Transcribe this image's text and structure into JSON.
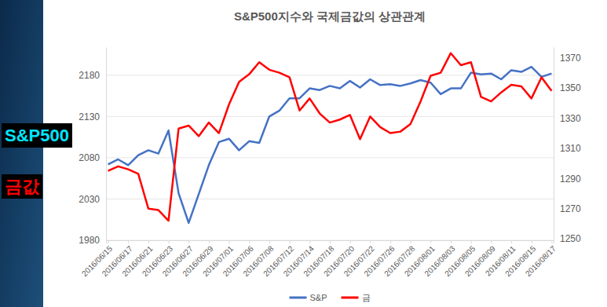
{
  "chart_data": {
    "type": "line",
    "title": "S&P500지수와 국제금값의 상관관계",
    "categories": [
      "2016/06/15",
      null,
      "2016/06/17",
      null,
      "2016/06/21",
      null,
      "2016/06/23",
      null,
      "2016/06/27",
      null,
      "2016/06/29",
      null,
      "2016/07/01",
      null,
      "2016/07/06",
      null,
      "2016/07/08",
      null,
      "2016/07/12",
      null,
      "2016/07/14",
      null,
      "2016/07/18",
      null,
      "2016/07/20",
      null,
      "2016/07/22",
      null,
      "2016/07/26",
      null,
      "2016/07/28",
      null,
      "2016/08/01",
      null,
      "2016/08/03",
      null,
      "2016/08/05",
      null,
      "2016/08/09",
      null,
      "2016/08/11",
      null,
      "2016/08/15",
      null,
      "2016/08/17"
    ],
    "series": [
      {
        "name": "S&P",
        "color": "#4472c4",
        "values": [
          2072,
          2078,
          2071,
          2083,
          2089,
          2085,
          2113,
          2037,
          2001,
          2036,
          2071,
          2099,
          2103,
          2089,
          2100,
          2098,
          2130,
          2137,
          2152,
          2152,
          2164,
          2162,
          2167,
          2164,
          2173,
          2165,
          2175,
          2168,
          2169,
          2167,
          2170,
          2174,
          2171,
          2157,
          2164,
          2164,
          2183,
          2181,
          2182,
          2175,
          2186,
          2184,
          2190,
          2178,
          2182
        ]
      },
      {
        "name": "금",
        "color": "#ff0000",
        "axis": "y2",
        "values": [
          1295,
          1298,
          1296,
          1293,
          1270,
          1269,
          1262,
          1323,
          1325,
          1318,
          1327,
          1320,
          1339,
          1354,
          1359,
          1367,
          1362,
          1360,
          1357,
          1335,
          1343,
          1333,
          1327,
          1329,
          1332,
          1316,
          1331,
          1324,
          1320,
          1321,
          1326,
          1341,
          1358,
          1360,
          1373,
          1365,
          1367,
          1344,
          1341,
          1347,
          1352,
          1351,
          1343,
          1357,
          1348
        ]
      }
    ],
    "ylim": [
      1980,
      2214
    ],
    "yticks": [
      1980,
      2030,
      2080,
      2130,
      2180
    ],
    "y2lim": [
      1249,
      1377
    ],
    "y2ticks": [
      1250,
      1270,
      1290,
      1310,
      1330,
      1350,
      1370
    ],
    "grid": true,
    "legend": "bottom",
    "annotations": [
      {
        "text": "S&P500",
        "color": "#00e5ff"
      },
      {
        "text": "금값",
        "color": "#ff0000"
      }
    ]
  }
}
